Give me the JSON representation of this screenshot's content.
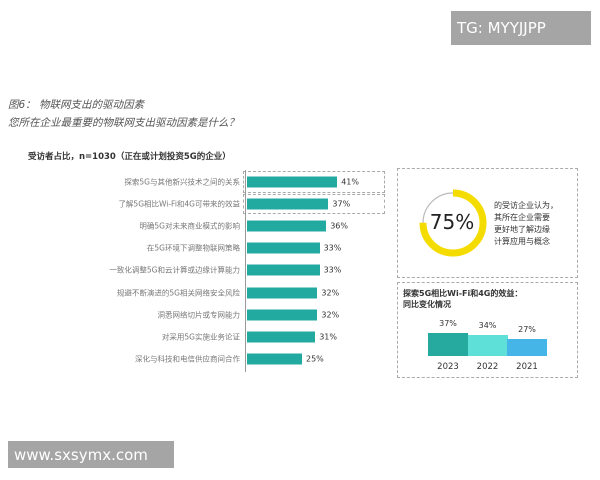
{
  "watermark_top": "TG: MYYJJPP",
  "watermark_bottom": "www.sxsymx.com",
  "chart_data": [
    {
      "type": "bar",
      "orientation": "horizontal",
      "title": "图6： 物联网支出的驱动因素",
      "question": "您所在企业最重要的物联网支出驱动因素是什么？",
      "subtitle": "受访者占比，n=1030（正在或计划投资5G的企业）",
      "categories": [
        "探索5G与其他新兴技术之间的关系",
        "了解5G相比Wi-Fi和4G可带来的效益",
        "明确5G对未来商业模式的影响",
        "在5G环境下调整物联网策略",
        "一致化调整5G和云计算或边缘计算能力",
        "规避不断演进的5G相关网络安全风险",
        "洞悉网络切片或专网能力",
        "对采用5G实施业务论证",
        "深化与科技和电信供应商间合作"
      ],
      "values": [
        41,
        37,
        36,
        33,
        33,
        32,
        32,
        31,
        25
      ],
      "labels": [
        "41%",
        "37%",
        "36%",
        "33%",
        "33%",
        "32%",
        "32%",
        "31%",
        "25%"
      ],
      "color": "#23aaa0"
    },
    {
      "type": "pie",
      "style": "donut",
      "value": 75,
      "label": "75%",
      "text": [
        "的受访企业认为，",
        "其所在企业需要",
        "更好地了解边缘",
        "计算应用与概念"
      ],
      "color": "#f5dc00",
      "remainder_color": "#bbbbbb"
    },
    {
      "type": "bar",
      "title": [
        "探索5G相比Wi-Fi和4G的效益：",
        "同比变化情况"
      ],
      "categories": [
        "2023",
        "2022",
        "2021"
      ],
      "values": [
        37,
        34,
        27
      ],
      "labels": [
        "37%",
        "34%",
        "27%"
      ],
      "colors": [
        "#26aaa0",
        "#5ee0d8",
        "#45b4e6"
      ]
    }
  ]
}
